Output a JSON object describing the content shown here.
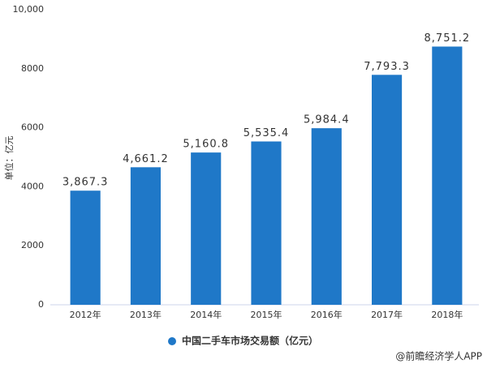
{
  "chart_data": {
    "type": "bar",
    "y_axis_label": "单位：亿元",
    "categories": [
      "2012年",
      "2013年",
      "2014年",
      "2015年",
      "2016年",
      "2017年",
      "2018年"
    ],
    "series": [
      {
        "name": "中国二手车市场交易额（亿元）",
        "color": "#1f78c8",
        "values": [
          3867.3,
          4661.2,
          5160.8,
          5535.4,
          5984.4,
          7793.3,
          8751.2
        ],
        "value_labels": [
          "3,867.3",
          "4,661.2",
          "5,160.8",
          "5,535.4",
          "5,984.4",
          "7,793.3",
          "8,751.2"
        ]
      }
    ],
    "ylim": [
      0,
      10000
    ],
    "yticks": [
      0,
      2000,
      4000,
      6000,
      8000,
      {
        "value": 10000,
        "label": "10,000"
      }
    ],
    "grid": false,
    "source": "@前瞻经济学人APP"
  }
}
